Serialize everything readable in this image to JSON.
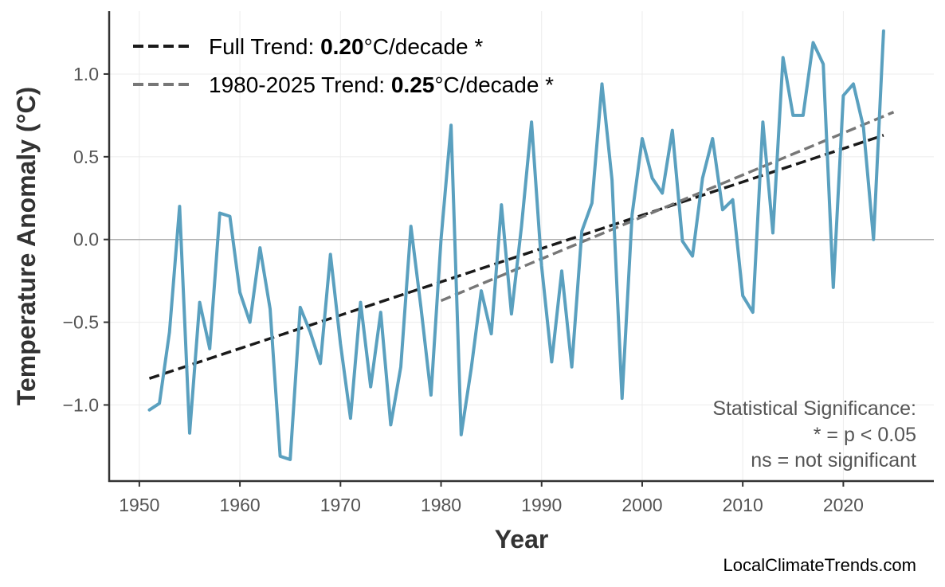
{
  "chart_data": {
    "type": "line",
    "xlabel": "Year",
    "ylabel": "Temperature Anomaly (°C)",
    "xlim": [
      1947,
      2029
    ],
    "ylim": [
      -1.46,
      1.38
    ],
    "xticks": [
      1950,
      1960,
      1970,
      1980,
      1990,
      2000,
      2010,
      2020
    ],
    "xtick_labels": [
      "1950",
      "1960",
      "1970",
      "1980",
      "1990",
      "2000",
      "2010",
      "2020"
    ],
    "yticks": [
      -1.0,
      -0.5,
      0.0,
      0.5,
      1.0
    ],
    "ytick_labels": [
      "−1.0",
      "−0.5",
      "0.0",
      "0.5",
      "1.0"
    ],
    "grid": true,
    "zero_line": true,
    "series": [
      {
        "color": "#5aa0bf",
        "x": [
          1951,
          1952,
          1953,
          1954,
          1955,
          1956,
          1957,
          1958,
          1959,
          1960,
          1961,
          1962,
          1963,
          1964,
          1965,
          1966,
          1967,
          1968,
          1969,
          1970,
          1971,
          1972,
          1973,
          1974,
          1975,
          1976,
          1977,
          1978,
          1979,
          1980,
          1981,
          1982,
          1983,
          1984,
          1985,
          1986,
          1987,
          1988,
          1989,
          1990,
          1991,
          1992,
          1993,
          1994,
          1995,
          1996,
          1997,
          1998,
          1999,
          2000,
          2001,
          2002,
          2003,
          2004,
          2005,
          2006,
          2007,
          2008,
          2009,
          2010,
          2011,
          2012,
          2013,
          2014,
          2015,
          2016,
          2017,
          2018,
          2019,
          2020,
          2021,
          2022,
          2023,
          2024
        ],
        "y": [
          -1.03,
          -0.99,
          -0.56,
          0.2,
          -1.17,
          -0.38,
          -0.66,
          0.16,
          0.14,
          -0.32,
          -0.5,
          -0.05,
          -0.42,
          -1.31,
          -1.33,
          -0.41,
          -0.56,
          -0.75,
          -0.09,
          -0.63,
          -1.08,
          -0.38,
          -0.89,
          -0.44,
          -1.12,
          -0.77,
          0.08,
          -0.41,
          -0.94,
          0.0,
          0.69,
          -1.18,
          -0.78,
          -0.31,
          -0.57,
          0.21,
          -0.45,
          0.08,
          0.71,
          -0.16,
          -0.74,
          -0.19,
          -0.77,
          0.05,
          0.22,
          0.94,
          0.36,
          -0.96,
          0.15,
          0.61,
          0.37,
          0.28,
          0.66,
          -0.01,
          -0.1,
          0.37,
          0.61,
          0.18,
          0.24,
          -0.34,
          -0.44,
          0.71,
          0.04,
          1.1,
          0.75,
          0.75,
          1.19,
          1.06,
          -0.29,
          0.87,
          0.94,
          0.68,
          0.0,
          1.26
        ]
      }
    ],
    "trend_lines": [
      {
        "x": [
          1951,
          2024
        ],
        "y": [
          -0.84,
          0.63
        ],
        "color": "#1a1a1a",
        "dash": true
      },
      {
        "x": [
          1980,
          2025
        ],
        "y": [
          -0.37,
          0.77
        ],
        "color": "#777777",
        "dash": true
      }
    ],
    "legend": {
      "placement": "top-left",
      "entries": [
        {
          "prefix": "Full Trend: ",
          "value": "0.20",
          "suffix": "°C/decade *",
          "color": "#1a1a1a"
        },
        {
          "prefix": "1980-2025 Trend: ",
          "value": "0.25",
          "suffix": "°C/decade *",
          "color": "#777777"
        }
      ]
    },
    "annotation": {
      "placement": "bottom-right",
      "lines": [
        "Statistical Significance:",
        "* = p < 0.05",
        "ns = not significant"
      ]
    },
    "credit": "LocalClimateTrends.com"
  }
}
